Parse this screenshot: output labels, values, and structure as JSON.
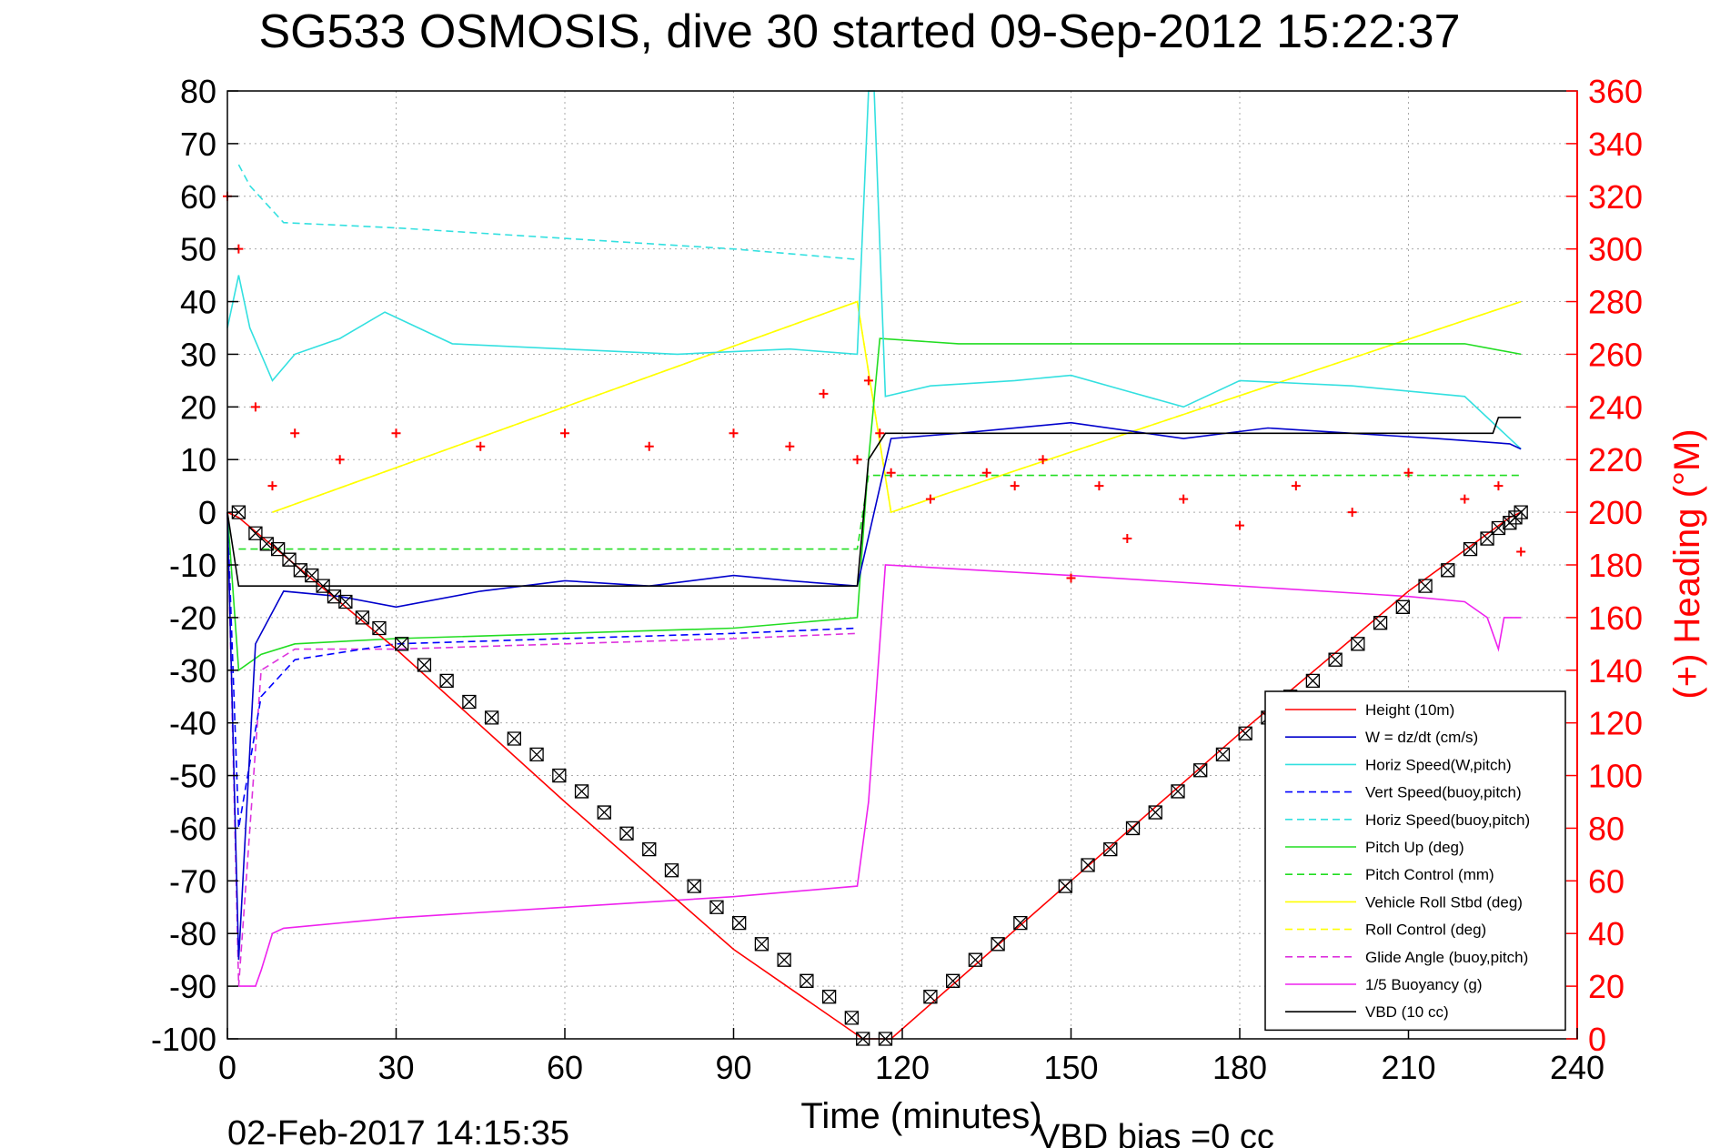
{
  "chart_data": {
    "type": "line",
    "title": "SG533 OSMOSIS, dive 30 started 09-Sep-2012 15:22:37",
    "xlabel": "Time (minutes)",
    "ylabel_right": "(+) Heading (°M)",
    "footer_date": "02-Feb-2017 14:15:35",
    "footer_bias": "VBD bias =0 cc",
    "xlim": [
      0,
      240
    ],
    "ylim": [
      -100,
      80
    ],
    "ylim_right": [
      0,
      360
    ],
    "xticks": [
      0,
      30,
      60,
      90,
      120,
      150,
      180,
      210,
      240
    ],
    "yticks": [
      80,
      70,
      60,
      50,
      40,
      30,
      20,
      10,
      0,
      -10,
      -20,
      -30,
      -40,
      -50,
      -60,
      -70,
      -80,
      -90,
      -100
    ],
    "yticks_right": [
      360,
      340,
      320,
      300,
      280,
      260,
      240,
      220,
      200,
      180,
      160,
      140,
      120,
      100,
      80,
      60,
      40,
      20,
      0
    ],
    "grid": true,
    "legend_position": "bottom-right",
    "colors": {
      "height": "#ff0000",
      "w": "#0000cc",
      "horiz": "#33e0e0",
      "pitch": "#22dd22",
      "roll": "#ffff00",
      "glide": "#dd33dd",
      "buoy": "#ee22ee",
      "vbd": "#000000",
      "heading": "#ff0000"
    },
    "legend": [
      {
        "label": "Height (10m)",
        "color": "#ff0000",
        "dash": false
      },
      {
        "label": "W = dz/dt (cm/s)",
        "color": "#0000cc",
        "dash": false
      },
      {
        "label": "Horiz Speed(W,pitch)",
        "color": "#33e0e0",
        "dash": false
      },
      {
        "label": "Vert Speed(buoy,pitch)",
        "color": "#0000ff",
        "dash": true
      },
      {
        "label": "Horiz Speed(buoy,pitch)",
        "color": "#33e0e0",
        "dash": true
      },
      {
        "label": "Pitch Up (deg)",
        "color": "#22dd22",
        "dash": false
      },
      {
        "label": "Pitch Control (mm)",
        "color": "#22dd22",
        "dash": true
      },
      {
        "label": "Vehicle Roll Stbd (deg)",
        "color": "#ffff00",
        "dash": false
      },
      {
        "label": "Roll Control (deg)",
        "color": "#ffff00",
        "dash": true
      },
      {
        "label": "Glide Angle (buoy,pitch)",
        "color": "#dd33dd",
        "dash": true
      },
      {
        "label": "1/5 Buoyancy (g)",
        "color": "#ee22ee",
        "dash": false
      },
      {
        "label": "VBD (10 cc)",
        "color": "#000000",
        "dash": false
      }
    ],
    "series": [
      {
        "name": "Height (10m)",
        "x": [
          0,
          2,
          30,
          60,
          90,
          113,
          118,
          150,
          180,
          210,
          228,
          230
        ],
        "y": [
          0,
          -1,
          -26,
          -55,
          -83,
          -100,
          -100,
          -70,
          -42,
          -15,
          -1,
          0
        ]
      },
      {
        "name": "W = dz/dt (cm/s)",
        "x": [
          0,
          2,
          5,
          10,
          20,
          30,
          45,
          60,
          75,
          90,
          100,
          112,
          118,
          130,
          150,
          170,
          185,
          200,
          215,
          228,
          230
        ],
        "y": [
          0,
          -85,
          -25,
          -15,
          -16,
          -18,
          -15,
          -13,
          -14,
          -12,
          -13,
          -14,
          14,
          15,
          17,
          14,
          16,
          15,
          14,
          13,
          12
        ]
      },
      {
        "name": "Horiz Speed(W,pitch)",
        "x": [
          0,
          2,
          4,
          8,
          12,
          20,
          28,
          40,
          60,
          80,
          100,
          112,
          114,
          115,
          117,
          125,
          140,
          150,
          160,
          170,
          180,
          200,
          220,
          230
        ],
        "y": [
          35,
          45,
          35,
          25,
          30,
          33,
          38,
          32,
          31,
          30,
          31,
          30,
          80,
          80,
          22,
          24,
          25,
          26,
          23,
          20,
          25,
          24,
          22,
          12
        ]
      },
      {
        "name": "Vert Speed(buoy,pitch)",
        "x": [
          0,
          2,
          6,
          12,
          30,
          60,
          90,
          112
        ],
        "y": [
          0,
          -60,
          -35,
          -28,
          -25,
          -24,
          -23,
          -22
        ]
      },
      {
        "name": "Horiz Speed(buoy,pitch)",
        "x": [
          2,
          4,
          10,
          30,
          60,
          90,
          112
        ],
        "y": [
          66,
          62,
          55,
          54,
          52,
          50,
          48
        ]
      },
      {
        "name": "Pitch Up (deg)",
        "x": [
          0,
          2,
          6,
          12,
          30,
          60,
          90,
          112,
          114,
          116,
          130,
          150,
          180,
          200,
          220,
          230
        ],
        "y": [
          0,
          -30,
          -27,
          -25,
          -24,
          -23,
          -22,
          -20,
          10,
          33,
          32,
          32,
          32,
          32,
          32,
          30
        ]
      },
      {
        "name": "Pitch Control (mm)",
        "x": [
          2,
          10,
          112,
          114,
          230
        ],
        "y": [
          -7,
          -7,
          -7,
          7,
          7
        ]
      },
      {
        "name": "Vehicle Roll Stbd (deg)",
        "x": [
          8,
          112,
          118,
          230
        ],
        "y": [
          0,
          40,
          0,
          40
        ]
      },
      {
        "name": "Roll Control (deg)",
        "x": [
          8,
          112,
          118,
          230
        ],
        "y": [
          0,
          40,
          0,
          40
        ]
      },
      {
        "name": "Glide Angle (buoy,pitch)",
        "x": [
          0,
          2,
          6,
          12,
          30,
          60,
          90,
          112
        ],
        "y": [
          0,
          -90,
          -30,
          -26,
          -26,
          -25,
          -24,
          -23
        ]
      },
      {
        "name": "1/5 Buoyancy (g)",
        "x": [
          2,
          5,
          6,
          8,
          10,
          30,
          60,
          90,
          112,
          114,
          117,
          150,
          180,
          210,
          220,
          224,
          226,
          227,
          230
        ],
        "y": [
          -90,
          -90,
          -87,
          -80,
          -79,
          -77,
          -75,
          -73,
          -71,
          -55,
          -10,
          -12,
          -14,
          -16,
          -17,
          -20,
          -26,
          -20,
          -20
        ]
      },
      {
        "name": "VBD (10 cc)",
        "x": [
          0,
          2,
          3,
          112,
          114,
          117,
          225,
          226,
          230
        ],
        "y": [
          0,
          -14,
          -14,
          -14,
          10,
          15,
          15,
          18,
          18
        ]
      },
      {
        "name": "(+) Heading (°M)",
        "x": [
          0,
          2,
          5,
          8,
          12,
          20,
          30,
          45,
          60,
          75,
          90,
          100,
          106,
          112,
          114,
          116,
          118,
          125,
          135,
          140,
          145,
          150,
          155,
          160,
          170,
          180,
          190,
          200,
          210,
          220,
          226,
          230
        ],
        "y": [
          320,
          300,
          240,
          210,
          230,
          220,
          230,
          225,
          230,
          225,
          230,
          225,
          245,
          220,
          250,
          230,
          215,
          205,
          215,
          210,
          220,
          175,
          210,
          190,
          205,
          195,
          210,
          200,
          215,
          205,
          210,
          185
        ]
      }
    ],
    "markers": {
      "x": [
        2,
        5,
        7,
        9,
        11,
        13,
        15,
        17,
        19,
        21,
        24,
        27,
        31,
        35,
        39,
        43,
        47,
        51,
        55,
        59,
        63,
        67,
        71,
        75,
        79,
        83,
        87,
        91,
        95,
        99,
        103,
        107,
        111,
        113,
        117,
        125,
        129,
        133,
        137,
        141,
        149,
        153,
        157,
        161,
        165,
        169,
        173,
        177,
        181,
        185,
        189,
        193,
        197,
        201,
        205,
        209,
        213,
        217,
        221,
        224,
        226,
        228,
        229,
        230
      ],
      "y": [
        0,
        -4,
        -6,
        -7,
        -9,
        -11,
        -12,
        -14,
        -16,
        -17,
        -20,
        -22,
        -25,
        -29,
        -32,
        -36,
        -39,
        -43,
        -46,
        -50,
        -53,
        -57,
        -61,
        -64,
        -68,
        -71,
        -75,
        -78,
        -82,
        -85,
        -89,
        -92,
        -96,
        -100,
        -100,
        -92,
        -89,
        -85,
        -82,
        -78,
        -71,
        -67,
        -64,
        -60,
        -57,
        -53,
        -49,
        -46,
        -42,
        -39,
        -35,
        -32,
        -28,
        -25,
        -21,
        -18,
        -14,
        -11,
        -7,
        -5,
        -3,
        -2,
        -1,
        0
      ]
    }
  },
  "frame_color": "#000000",
  "grid_color": "#aaaaaa",
  "axis_right_color": "#ff0000"
}
